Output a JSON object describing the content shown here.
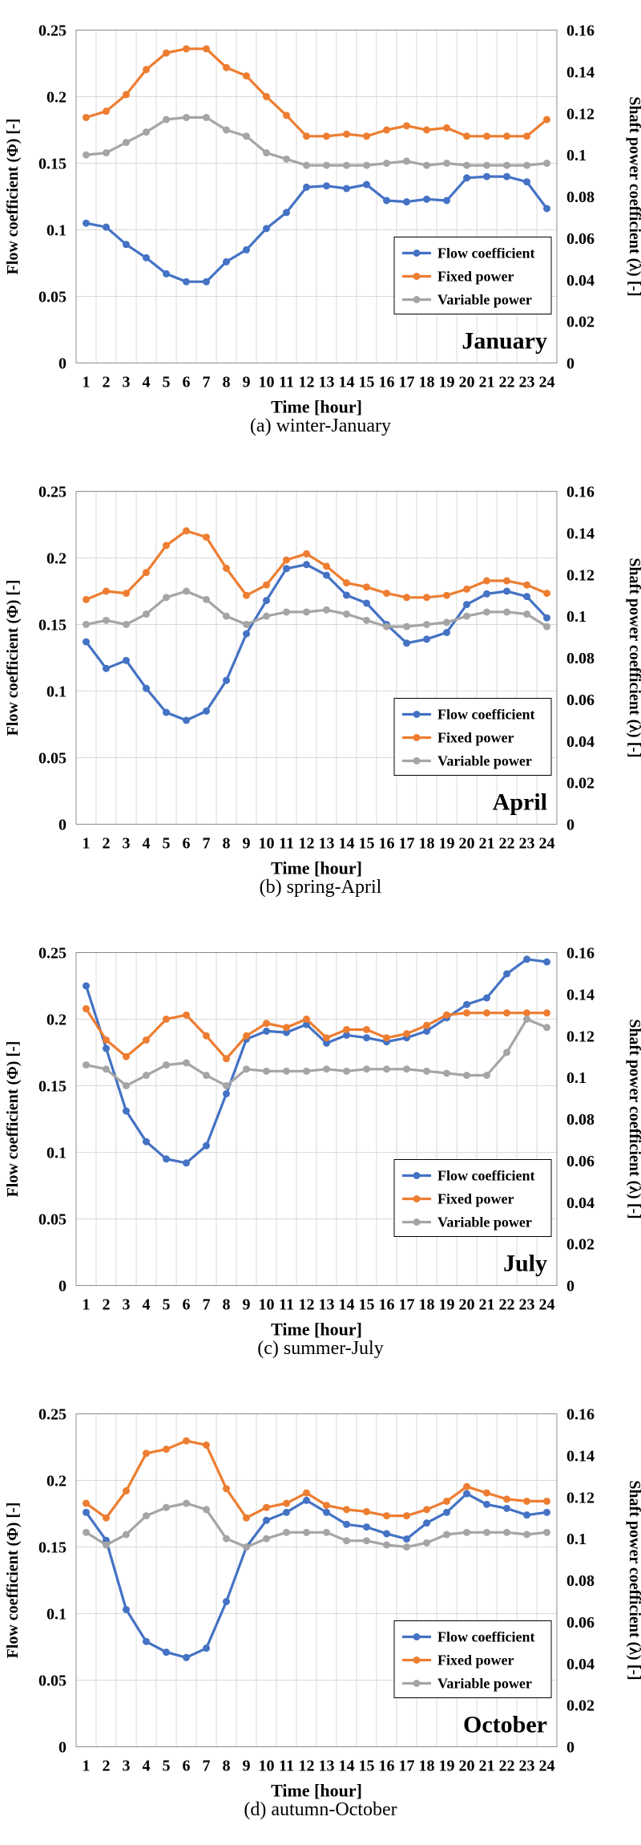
{
  "colors": {
    "flow": "#4472C4",
    "fixed": "#ED7D31",
    "variable": "#A5A5A5",
    "grid": "#D9D9D9",
    "axis": "#000000"
  },
  "chart_data": [
    {
      "type": "line",
      "month_label": "January",
      "caption": "(a)  winter-January",
      "xlabel": "Time [hour]",
      "ylabel_left": "Flow coefficient (Φ) [-]",
      "ylabel_right": "Shaft power coefficient (λ) [-]",
      "ylim_left": [
        0,
        0.25
      ],
      "ylim_right": [
        0,
        0.16
      ],
      "yticks_left": [
        "0",
        "0.05",
        "0.1",
        "0.15",
        "0.2",
        "0.25"
      ],
      "yticks_right": [
        "0",
        "0.02",
        "0.04",
        "0.06",
        "0.08",
        "0.1",
        "0.12",
        "0.14",
        "0.16"
      ],
      "x": [
        "1",
        "2",
        "3",
        "4",
        "5",
        "6",
        "7",
        "8",
        "9",
        "10",
        "11",
        "12",
        "13",
        "14",
        "15",
        "16",
        "17",
        "18",
        "19",
        "20",
        "21",
        "22",
        "23",
        "24"
      ],
      "grid": true,
      "legend_position": "center-right",
      "series": [
        {
          "name": "Flow coefficient",
          "axis": "left",
          "color_key": "flow",
          "values": [
            0.105,
            0.102,
            0.089,
            0.079,
            0.067,
            0.061,
            0.061,
            0.076,
            0.085,
            0.101,
            0.113,
            0.132,
            0.133,
            0.131,
            0.134,
            0.122,
            0.121,
            0.123,
            0.122,
            0.139,
            0.14,
            0.14,
            0.136,
            0.116
          ]
        },
        {
          "name": "Fixed power",
          "axis": "right",
          "color_key": "fixed",
          "values": [
            0.118,
            0.121,
            0.129,
            0.141,
            0.149,
            0.151,
            0.151,
            0.142,
            0.138,
            0.128,
            0.119,
            0.109,
            0.109,
            0.11,
            0.109,
            0.112,
            0.114,
            0.112,
            0.113,
            0.109,
            0.109,
            0.109,
            0.109,
            0.117
          ]
        },
        {
          "name": "Variable power",
          "axis": "right",
          "color_key": "variable",
          "values": [
            0.1,
            0.101,
            0.106,
            0.111,
            0.117,
            0.118,
            0.118,
            0.112,
            0.109,
            0.101,
            0.098,
            0.095,
            0.095,
            0.095,
            0.095,
            0.096,
            0.097,
            0.095,
            0.096,
            0.095,
            0.095,
            0.095,
            0.095,
            0.096
          ]
        }
      ]
    },
    {
      "type": "line",
      "month_label": "April",
      "caption": "(b)  spring-April",
      "xlabel": "Time [hour]",
      "ylabel_left": "Flow coefficient (Φ) [-]",
      "ylabel_right": "Shaft power coefficient (λ) [-]",
      "ylim_left": [
        0,
        0.25
      ],
      "ylim_right": [
        0,
        0.16
      ],
      "yticks_left": [
        "0",
        "0.05",
        "0.1",
        "0.15",
        "0.2",
        "0.25"
      ],
      "yticks_right": [
        "0",
        "0.02",
        "0.04",
        "0.06",
        "0.08",
        "0.1",
        "0.12",
        "0.14",
        "0.16"
      ],
      "x": [
        "1",
        "2",
        "3",
        "4",
        "5",
        "6",
        "7",
        "8",
        "9",
        "10",
        "11",
        "12",
        "13",
        "14",
        "15",
        "16",
        "17",
        "18",
        "19",
        "20",
        "21",
        "22",
        "23",
        "24"
      ],
      "grid": true,
      "legend_position": "center-right",
      "series": [
        {
          "name": "Flow coefficient",
          "axis": "left",
          "color_key": "flow",
          "values": [
            0.137,
            0.117,
            0.123,
            0.102,
            0.084,
            0.078,
            0.085,
            0.108,
            0.143,
            0.168,
            0.192,
            0.195,
            0.187,
            0.172,
            0.166,
            0.15,
            0.136,
            0.139,
            0.144,
            0.165,
            0.173,
            0.175,
            0.171,
            0.155
          ]
        },
        {
          "name": "Fixed power",
          "axis": "right",
          "color_key": "fixed",
          "values": [
            0.108,
            0.112,
            0.111,
            0.121,
            0.134,
            0.141,
            0.138,
            0.123,
            0.11,
            0.115,
            0.127,
            0.13,
            0.124,
            0.116,
            0.114,
            0.111,
            0.109,
            0.109,
            0.11,
            0.113,
            0.117,
            0.117,
            0.115,
            0.111
          ]
        },
        {
          "name": "Variable power",
          "axis": "right",
          "color_key": "variable",
          "values": [
            0.096,
            0.098,
            0.096,
            0.101,
            0.109,
            0.112,
            0.108,
            0.1,
            0.096,
            0.1,
            0.102,
            0.102,
            0.103,
            0.101,
            0.098,
            0.095,
            0.095,
            0.096,
            0.097,
            0.1,
            0.102,
            0.102,
            0.101,
            0.095
          ]
        }
      ]
    },
    {
      "type": "line",
      "month_label": "July",
      "caption": "(c)  summer-July",
      "xlabel": "Time [hour]",
      "ylabel_left": "Flow coefficient (Φ) [-]",
      "ylabel_right": "Shaft power coefficient (λ) [-]",
      "ylim_left": [
        0,
        0.25
      ],
      "ylim_right": [
        0,
        0.16
      ],
      "yticks_left": [
        "0",
        "0.05",
        "0.1",
        "0.15",
        "0.2",
        "0.25"
      ],
      "yticks_right": [
        "0",
        "0.02",
        "0.04",
        "0.06",
        "0.08",
        "0.1",
        "0.12",
        "0.14",
        "0.16"
      ],
      "x": [
        "1",
        "2",
        "3",
        "4",
        "5",
        "6",
        "7",
        "8",
        "9",
        "10",
        "11",
        "12",
        "13",
        "14",
        "15",
        "16",
        "17",
        "18",
        "19",
        "20",
        "21",
        "22",
        "23",
        "24"
      ],
      "grid": true,
      "legend_position": "center-right",
      "series": [
        {
          "name": "Flow coefficient",
          "axis": "left",
          "color_key": "flow",
          "values": [
            0.225,
            0.178,
            0.131,
            0.108,
            0.095,
            0.092,
            0.105,
            0.144,
            0.185,
            0.191,
            0.19,
            0.196,
            0.182,
            0.188,
            0.186,
            0.183,
            0.186,
            0.191,
            0.201,
            0.211,
            0.216,
            0.234,
            0.245,
            0.243
          ]
        },
        {
          "name": "Fixed power",
          "axis": "right",
          "color_key": "fixed",
          "values": [
            0.133,
            0.118,
            0.11,
            0.118,
            0.128,
            0.13,
            0.12,
            0.109,
            0.12,
            0.126,
            0.124,
            0.128,
            0.119,
            0.123,
            0.123,
            0.119,
            0.121,
            0.125,
            0.13,
            0.131,
            0.131,
            0.131,
            0.131,
            0.131
          ]
        },
        {
          "name": "Variable power",
          "axis": "right",
          "color_key": "variable",
          "values": [
            0.106,
            0.104,
            0.096,
            0.101,
            0.106,
            0.107,
            0.101,
            0.096,
            0.104,
            0.103,
            0.103,
            0.103,
            0.104,
            0.103,
            0.104,
            0.104,
            0.104,
            0.103,
            0.102,
            0.101,
            0.101,
            0.112,
            0.128,
            0.124
          ]
        }
      ]
    },
    {
      "type": "line",
      "month_label": "October",
      "caption": "(d)  autumn-October",
      "xlabel": "Time [hour]",
      "ylabel_left": "Flow coefficient (Φ) [-]",
      "ylabel_right": "Shaft power coefficient (λ) [-]",
      "ylim_left": [
        0,
        0.25
      ],
      "ylim_right": [
        0,
        0.16
      ],
      "yticks_left": [
        "0",
        "0.05",
        "0.1",
        "0.15",
        "0.2",
        "0.25"
      ],
      "yticks_right": [
        "0",
        "0.02",
        "0.04",
        "0.06",
        "0.08",
        "0.1",
        "0.12",
        "0.14",
        "0.16"
      ],
      "x": [
        "1",
        "2",
        "3",
        "4",
        "5",
        "6",
        "7",
        "8",
        "9",
        "10",
        "11",
        "12",
        "13",
        "14",
        "15",
        "16",
        "17",
        "18",
        "19",
        "20",
        "21",
        "22",
        "23",
        "24"
      ],
      "grid": true,
      "legend_position": "center-right",
      "series": [
        {
          "name": "Flow coefficient",
          "axis": "left",
          "color_key": "flow",
          "values": [
            0.176,
            0.155,
            0.103,
            0.079,
            0.071,
            0.067,
            0.074,
            0.109,
            0.15,
            0.17,
            0.176,
            0.185,
            0.176,
            0.167,
            0.165,
            0.16,
            0.156,
            0.168,
            0.176,
            0.19,
            0.182,
            0.179,
            0.174,
            0.176
          ]
        },
        {
          "name": "Fixed power",
          "axis": "right",
          "color_key": "fixed",
          "values": [
            0.117,
            0.11,
            0.123,
            0.141,
            0.143,
            0.147,
            0.145,
            0.124,
            0.11,
            0.115,
            0.117,
            0.122,
            0.116,
            0.114,
            0.113,
            0.111,
            0.111,
            0.114,
            0.118,
            0.125,
            0.122,
            0.119,
            0.118,
            0.118
          ]
        },
        {
          "name": "Variable power",
          "axis": "right",
          "color_key": "variable",
          "values": [
            0.103,
            0.097,
            0.102,
            0.111,
            0.115,
            0.117,
            0.114,
            0.1,
            0.096,
            0.1,
            0.103,
            0.103,
            0.103,
            0.099,
            0.099,
            0.097,
            0.096,
            0.098,
            0.102,
            0.103,
            0.103,
            0.103,
            0.102,
            0.103
          ]
        }
      ]
    }
  ]
}
